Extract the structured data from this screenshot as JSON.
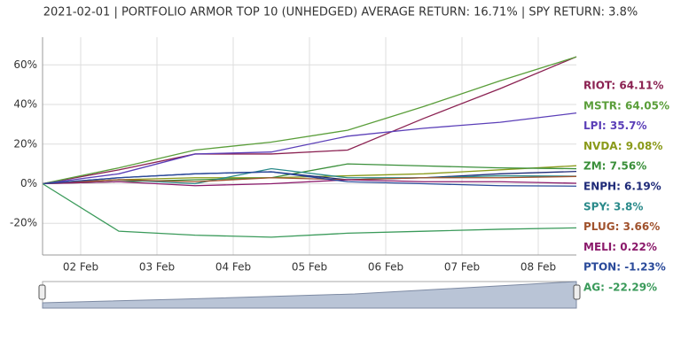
{
  "chart_data": {
    "type": "line",
    "title": "2021-02-01 | PORTFOLIO ARMOR TOP 10 (UNHEDGED) AVERAGE RETURN: 16.71% | SPY RETURN: 3.8%",
    "x": [
      1.5,
      2.5,
      3.5,
      4.5,
      5.5,
      6.5,
      7.5,
      8.5
    ],
    "xlim": [
      1.5,
      8.5
    ],
    "xticks": [
      {
        "value": 2,
        "label": "02 Feb"
      },
      {
        "value": 3,
        "label": "03 Feb"
      },
      {
        "value": 4,
        "label": "04 Feb"
      },
      {
        "value": 5,
        "label": "05 Feb"
      },
      {
        "value": 6,
        "label": "06 Feb"
      },
      {
        "value": 7,
        "label": "07 Feb"
      },
      {
        "value": 8,
        "label": "08 Feb"
      }
    ],
    "ylim": [
      -36,
      74
    ],
    "yticks": [
      {
        "value": -20,
        "label": "-20%"
      },
      {
        "value": 0,
        "label": "0%"
      },
      {
        "value": 20,
        "label": "20%"
      },
      {
        "value": 40,
        "label": "40%"
      },
      {
        "value": 60,
        "label": "60%"
      }
    ],
    "grid": true,
    "series": [
      {
        "name": "RIOT",
        "end_label": "RIOT: 64.11%",
        "color": "#8b2252",
        "values": [
          0,
          7,
          15,
          15,
          17,
          33,
          48,
          64.11
        ]
      },
      {
        "name": "MSTR",
        "end_label": "MSTR: 64.05%",
        "color": "#5a9e3a",
        "values": [
          0,
          8,
          17,
          21,
          27,
          39,
          52,
          64.05
        ]
      },
      {
        "name": "LPI",
        "end_label": "LPI: 35.7%",
        "color": "#5b3fb8",
        "values": [
          0,
          5,
          15,
          16,
          24,
          28,
          31,
          35.7
        ]
      },
      {
        "name": "NVDA",
        "end_label": "NVDA: 9.08%",
        "color": "#8a9a1a",
        "values": [
          0,
          2,
          3,
          3,
          4,
          5,
          7,
          9.08
        ]
      },
      {
        "name": "ZM",
        "end_label": "ZM: 7.56%",
        "color": "#3a8f3a",
        "values": [
          0,
          1,
          2,
          3,
          10,
          9,
          8,
          7.56
        ]
      },
      {
        "name": "ENPH",
        "end_label": "ENPH: 6.19%",
        "color": "#1e2a78",
        "values": [
          0,
          3,
          5,
          6,
          2,
          3,
          5,
          6.19
        ]
      },
      {
        "name": "SPY",
        "end_label": "SPY: 3.8%",
        "color": "#2a8a8a",
        "values": [
          0,
          2,
          0,
          7.6,
          3,
          3,
          4,
          3.8
        ]
      },
      {
        "name": "PLUG",
        "end_label": "PLUG: 3.66%",
        "color": "#a0522d",
        "values": [
          0,
          2,
          1,
          3,
          2,
          3,
          3,
          3.66
        ]
      },
      {
        "name": "MELI",
        "end_label": "MELI: 0.22%",
        "color": "#8b1a6b",
        "values": [
          0,
          1,
          -1,
          0,
          2,
          1,
          1,
          0.22
        ]
      },
      {
        "name": "PTON",
        "end_label": "PTON: -1.23%",
        "color": "#2a4a9a",
        "values": [
          0,
          3,
          5,
          6,
          1,
          0,
          -1,
          -1.23
        ]
      },
      {
        "name": "AG",
        "end_label": "AG: -22.29%",
        "color": "#3a9a5a",
        "values": [
          0,
          -24,
          -26,
          -27,
          -25,
          -24,
          -23,
          -22.29
        ]
      }
    ]
  }
}
